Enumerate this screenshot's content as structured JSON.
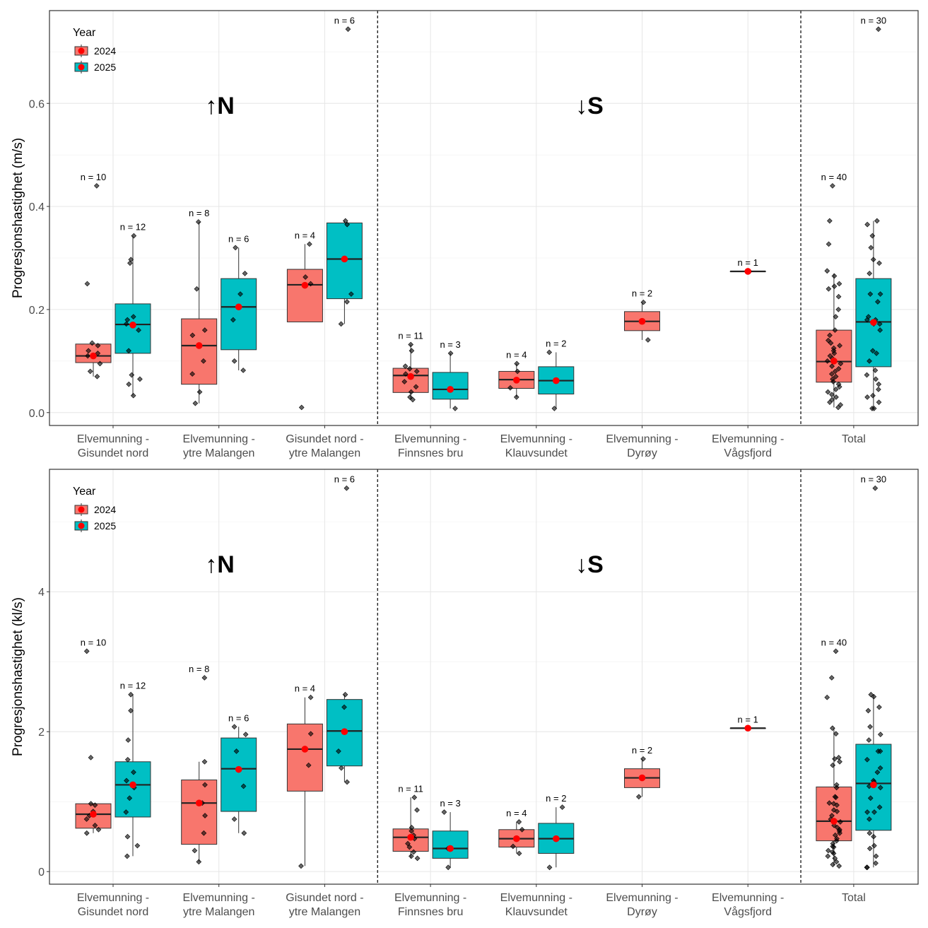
{
  "chart_data": [
    {
      "type": "boxplot",
      "ylabel": "Progresjonshastighet (m/s)",
      "ylim": [
        -0.025,
        0.78
      ],
      "yticks": [
        0.0,
        0.2,
        0.4,
        0.6
      ],
      "ytick_labels": [
        "0.0",
        "0.2",
        "0.4",
        "0.6"
      ],
      "grid": true,
      "legend": {
        "title": "Year",
        "position": "top-left",
        "entries": [
          "2024",
          "2025"
        ]
      },
      "direction_labels": [
        "↑N",
        "↓S"
      ],
      "categories": [
        "Elvemunning -\nGisundet nord",
        "Elvemunning -\nytre Malangen",
        "Gisundet nord -\nytre Malangen",
        "Elvemunning -\nFinnsnes bru",
        "Elvemunning -\nKlauvsundet",
        "Elvemunning -\nDyrøy",
        "Elvemunning -\nVågsfjord",
        "Total"
      ],
      "separators_after_category": [
        3,
        7
      ],
      "boxes": [
        {
          "category": 1,
          "year": "2024",
          "q1": 0.097,
          "median": 0.11,
          "q3": 0.133,
          "whisker_low": 0.07,
          "whisker_high": 0.133,
          "mean": 0.11,
          "n_label": "n = 10",
          "points": [
            0.44,
            0.25,
            0.135,
            0.13,
            0.12,
            0.115,
            0.11,
            0.095,
            0.08,
            0.07
          ]
        },
        {
          "category": 1,
          "year": "2025",
          "q1": 0.115,
          "median": 0.171,
          "q3": 0.211,
          "whisker_low": 0.033,
          "whisker_high": 0.343,
          "mean": 0.17,
          "n_label": "n = 12",
          "points": [
            0.343,
            0.297,
            0.29,
            0.186,
            0.18,
            0.172,
            0.16,
            0.12,
            0.073,
            0.065,
            0.055,
            0.033
          ]
        },
        {
          "category": 2,
          "year": "2024",
          "q1": 0.055,
          "median": 0.13,
          "q3": 0.182,
          "whisker_low": 0.018,
          "whisker_high": 0.37,
          "mean": 0.13,
          "n_label": "n = 8",
          "points": [
            0.37,
            0.24,
            0.16,
            0.15,
            0.1,
            0.075,
            0.04,
            0.018
          ]
        },
        {
          "category": 2,
          "year": "2025",
          "q1": 0.122,
          "median": 0.205,
          "q3": 0.26,
          "whisker_low": 0.082,
          "whisker_high": 0.32,
          "mean": 0.205,
          "n_label": "n = 6",
          "points": [
            0.32,
            0.27,
            0.23,
            0.18,
            0.1,
            0.082
          ]
        },
        {
          "category": 3,
          "year": "2024",
          "q1": 0.176,
          "median": 0.248,
          "q3": 0.278,
          "whisker_low": 0.176,
          "whisker_high": 0.327,
          "mean": 0.247,
          "n_label": "n = 4",
          "points": [
            0.327,
            0.263,
            0.25,
            0.01
          ]
        },
        {
          "category": 3,
          "year": "2025",
          "q1": 0.221,
          "median": 0.298,
          "q3": 0.368,
          "whisker_low": 0.172,
          "whisker_high": 0.372,
          "mean": 0.298,
          "n_label": "n = 6",
          "points": [
            0.744,
            0.372,
            0.365,
            0.23,
            0.215,
            0.172
          ]
        },
        {
          "category": 4,
          "year": "2024",
          "q1": 0.039,
          "median": 0.072,
          "q3": 0.086,
          "whisker_low": 0.025,
          "whisker_high": 0.132,
          "mean": 0.07,
          "n_label": "n = 11",
          "points": [
            0.132,
            0.12,
            0.09,
            0.085,
            0.08,
            0.075,
            0.06,
            0.05,
            0.04,
            0.03,
            0.025
          ]
        },
        {
          "category": 4,
          "year": "2025",
          "q1": 0.026,
          "median": 0.045,
          "q3": 0.078,
          "whisker_low": 0.008,
          "whisker_high": 0.115,
          "mean": 0.045,
          "n_label": "n = 3",
          "points": [
            0.115,
            0.045,
            0.008
          ]
        },
        {
          "category": 5,
          "year": "2024",
          "q1": 0.047,
          "median": 0.064,
          "q3": 0.08,
          "whisker_low": 0.03,
          "whisker_high": 0.095,
          "mean": 0.063,
          "n_label": "n = 4",
          "points": [
            0.095,
            0.08,
            0.048,
            0.03
          ]
        },
        {
          "category": 5,
          "year": "2025",
          "q1": 0.036,
          "median": 0.062,
          "q3": 0.089,
          "whisker_low": 0.008,
          "whisker_high": 0.117,
          "mean": 0.062,
          "n_label": "n = 2",
          "points": [
            0.117,
            0.008
          ]
        },
        {
          "category": 6,
          "year": "2024",
          "q1": 0.159,
          "median": 0.177,
          "q3": 0.196,
          "whisker_low": 0.141,
          "whisker_high": 0.214,
          "mean": 0.177,
          "n_label": "n = 2",
          "points": [
            0.214,
            0.141
          ]
        },
        {
          "category": 7,
          "year": "2024",
          "q1": 0.274,
          "median": 0.274,
          "q3": 0.274,
          "whisker_low": 0.274,
          "whisker_high": 0.274,
          "mean": 0.274,
          "n_label": "n = 1",
          "points": [
            0.274
          ]
        },
        {
          "category": 8,
          "year": "2024",
          "q1": 0.059,
          "median": 0.099,
          "q3": 0.16,
          "whisker_low": 0.01,
          "whisker_high": 0.27,
          "mean": 0.1,
          "n_label": "n = 40",
          "points": [
            0.44,
            0.372,
            0.327,
            0.275,
            0.265,
            0.25,
            0.245,
            0.24,
            0.225,
            0.2,
            0.186,
            0.16,
            0.15,
            0.14,
            0.135,
            0.13,
            0.125,
            0.12,
            0.115,
            0.11,
            0.105,
            0.1,
            0.095,
            0.09,
            0.085,
            0.08,
            0.075,
            0.07,
            0.065,
            0.06,
            0.055,
            0.05,
            0.045,
            0.04,
            0.035,
            0.03,
            0.025,
            0.02,
            0.015,
            0.01
          ]
        },
        {
          "category": 8,
          "year": "2025",
          "q1": 0.089,
          "median": 0.176,
          "q3": 0.26,
          "whisker_low": 0.008,
          "whisker_high": 0.372,
          "mean": 0.175,
          "n_label": "n = 30",
          "points": [
            0.744,
            0.372,
            0.365,
            0.343,
            0.32,
            0.297,
            0.29,
            0.27,
            0.23,
            0.23,
            0.215,
            0.186,
            0.18,
            0.18,
            0.172,
            0.172,
            0.16,
            0.12,
            0.115,
            0.1,
            0.082,
            0.073,
            0.065,
            0.055,
            0.045,
            0.033,
            0.03,
            0.02,
            0.008,
            0.008
          ]
        }
      ]
    },
    {
      "type": "boxplot",
      "ylabel": "Progresjonshastighet (kl/s)",
      "ylim": [
        -0.18,
        5.75
      ],
      "yticks": [
        0,
        2,
        4
      ],
      "ytick_labels": [
        "0",
        "2",
        "4"
      ],
      "grid": true,
      "legend": {
        "title": "Year",
        "position": "top-left",
        "entries": [
          "2024",
          "2025"
        ]
      },
      "direction_labels": [
        "↑N",
        "↓S"
      ],
      "categories": [
        "Elvemunning -\nGisundet nord",
        "Elvemunning -\nytre Malangen",
        "Gisundet nord -\nytre Malangen",
        "Elvemunning -\nFinnsnes bru",
        "Elvemunning -\nKlauvsundet",
        "Elvemunning -\nDyrøy",
        "Elvemunning -\nVågsfjord",
        "Total"
      ],
      "separators_after_category": [
        3,
        7
      ],
      "boxes": [
        {
          "category": 1,
          "year": "2024",
          "q1": 0.62,
          "median": 0.82,
          "q3": 0.97,
          "whisker_low": 0.55,
          "whisker_high": 0.97,
          "mean": 0.82,
          "n_label": "n = 10",
          "points": [
            3.15,
            1.63,
            0.97,
            0.95,
            0.86,
            0.8,
            0.75,
            0.66,
            0.6,
            0.55
          ]
        },
        {
          "category": 1,
          "year": "2025",
          "q1": 0.78,
          "median": 1.24,
          "q3": 1.57,
          "whisker_low": 0.22,
          "whisker_high": 2.53,
          "mean": 1.24,
          "n_label": "n = 12",
          "points": [
            2.53,
            2.3,
            1.88,
            1.6,
            1.42,
            1.3,
            1.2,
            1.05,
            0.85,
            0.5,
            0.37,
            0.22
          ]
        },
        {
          "category": 2,
          "year": "2024",
          "q1": 0.39,
          "median": 0.98,
          "q3": 1.31,
          "whisker_low": 0.14,
          "whisker_high": 1.57,
          "mean": 0.98,
          "n_label": "n = 8",
          "points": [
            2.77,
            1.57,
            1.24,
            0.98,
            0.8,
            0.55,
            0.3,
            0.14
          ]
        },
        {
          "category": 2,
          "year": "2025",
          "q1": 0.86,
          "median": 1.47,
          "q3": 1.91,
          "whisker_low": 0.55,
          "whisker_high": 2.07,
          "mean": 1.46,
          "n_label": "n = 6",
          "points": [
            2.07,
            1.96,
            1.72,
            1.22,
            0.75,
            0.55
          ]
        },
        {
          "category": 3,
          "year": "2024",
          "q1": 1.15,
          "median": 1.75,
          "q3": 2.11,
          "whisker_low": 0.08,
          "whisker_high": 2.49,
          "mean": 1.75,
          "n_label": "n = 4",
          "points": [
            2.49,
            1.97,
            1.52,
            0.08
          ]
        },
        {
          "category": 3,
          "year": "2025",
          "q1": 1.51,
          "median": 2.01,
          "q3": 2.46,
          "whisker_low": 1.28,
          "whisker_high": 2.53,
          "mean": 2.0,
          "n_label": "n = 6",
          "points": [
            5.48,
            2.53,
            2.35,
            1.72,
            1.48,
            1.28
          ]
        },
        {
          "category": 4,
          "year": "2024",
          "q1": 0.29,
          "median": 0.49,
          "q3": 0.61,
          "whisker_low": 0.19,
          "whisker_high": 1.06,
          "mean": 0.49,
          "n_label": "n = 11",
          "points": [
            1.06,
            0.88,
            0.63,
            0.58,
            0.52,
            0.47,
            0.4,
            0.35,
            0.28,
            0.22,
            0.19
          ]
        },
        {
          "category": 4,
          "year": "2025",
          "q1": 0.19,
          "median": 0.33,
          "q3": 0.58,
          "whisker_low": 0.06,
          "whisker_high": 0.85,
          "mean": 0.33,
          "n_label": "n = 3",
          "points": [
            0.85,
            0.33,
            0.06
          ]
        },
        {
          "category": 5,
          "year": "2024",
          "q1": 0.35,
          "median": 0.47,
          "q3": 0.6,
          "whisker_low": 0.26,
          "whisker_high": 0.71,
          "mean": 0.47,
          "n_label": "n = 4",
          "points": [
            0.71,
            0.6,
            0.36,
            0.26
          ]
        },
        {
          "category": 5,
          "year": "2025",
          "q1": 0.26,
          "median": 0.47,
          "q3": 0.69,
          "whisker_low": 0.06,
          "whisker_high": 0.92,
          "mean": 0.47,
          "n_label": "n = 2",
          "points": [
            0.92,
            0.06
          ]
        },
        {
          "category": 6,
          "year": "2024",
          "q1": 1.2,
          "median": 1.34,
          "q3": 1.47,
          "whisker_low": 1.07,
          "whisker_high": 1.61,
          "mean": 1.34,
          "n_label": "n = 2",
          "points": [
            1.61,
            1.07
          ]
        },
        {
          "category": 7,
          "year": "2024",
          "q1": 2.05,
          "median": 2.05,
          "q3": 2.05,
          "whisker_low": 2.05,
          "whisker_high": 2.05,
          "mean": 2.05,
          "n_label": "n = 1",
          "points": [
            2.05
          ]
        },
        {
          "category": 8,
          "year": "2024",
          "q1": 0.44,
          "median": 0.72,
          "q3": 1.21,
          "whisker_low": 0.08,
          "whisker_high": 2.05,
          "mean": 0.72,
          "n_label": "n = 40",
          "points": [
            3.15,
            2.77,
            2.49,
            2.05,
            1.97,
            1.63,
            1.61,
            1.57,
            1.52,
            1.24,
            1.2,
            1.07,
            1.06,
            0.98,
            0.97,
            0.95,
            0.88,
            0.86,
            0.8,
            0.75,
            0.71,
            0.66,
            0.63,
            0.6,
            0.58,
            0.55,
            0.52,
            0.47,
            0.44,
            0.4,
            0.36,
            0.35,
            0.3,
            0.28,
            0.26,
            0.22,
            0.19,
            0.14,
            0.1,
            0.08
          ]
        },
        {
          "category": 8,
          "year": "2025",
          "q1": 0.59,
          "median": 1.26,
          "q3": 1.82,
          "whisker_low": 0.06,
          "whisker_high": 2.53,
          "mean": 1.24,
          "n_label": "n = 30",
          "points": [
            5.48,
            2.53,
            2.5,
            2.35,
            2.3,
            2.07,
            1.96,
            1.88,
            1.72,
            1.72,
            1.6,
            1.48,
            1.42,
            1.3,
            1.28,
            1.22,
            1.2,
            1.05,
            0.92,
            0.85,
            0.85,
            0.75,
            0.55,
            0.5,
            0.37,
            0.33,
            0.22,
            0.12,
            0.06,
            0.06
          ]
        }
      ]
    }
  ],
  "colors": {
    "2024": "#F8766D",
    "2025": "#00BFC4",
    "mean": "#FF0000",
    "point": "#000000"
  }
}
